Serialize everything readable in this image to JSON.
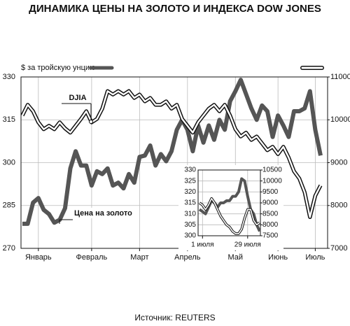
{
  "title": "ДИНАМИКА  ЦЕНЫ НА ЗОЛОТО И ИНДЕКСА DOW JONES",
  "source": "Источник: REUTERS",
  "chart_data": [
    {
      "type": "line",
      "y_label": "$ за тройскую унцию",
      "categories": [
        null,
        null,
        null,
        "Январь",
        null,
        null,
        null,
        null,
        null,
        null,
        null,
        null,
        null,
        "Февраль",
        null,
        null,
        null,
        null,
        null,
        null,
        null,
        null,
        "Март",
        null,
        null,
        null,
        null,
        null,
        null,
        null,
        null,
        "Апрель",
        null,
        null,
        null,
        null,
        null,
        null,
        null,
        null,
        "Май",
        null,
        null,
        null,
        null,
        null,
        null,
        null,
        "Июнь",
        null,
        null,
        null,
        null,
        null,
        null,
        "Июль",
        null
      ],
      "series": [
        {
          "name": "Цена на золото",
          "color": "#555555",
          "values": [
            278.6,
            278.6,
            286,
            287.6,
            283.5,
            282,
            279,
            280,
            284,
            298,
            304,
            299,
            299,
            292,
            297,
            296,
            298,
            292,
            293,
            291,
            296,
            293,
            302,
            302.5,
            306,
            299,
            303,
            300.5,
            304,
            311.5,
            315,
            311.5,
            304,
            313,
            307,
            313,
            308,
            315,
            311.5,
            321.5,
            325,
            329,
            324,
            319,
            315,
            320,
            318,
            309,
            316.5,
            313,
            309,
            318,
            318,
            319,
            325,
            311.5,
            302.5
          ]
        },
        {
          "name": "DJIA",
          "color": "#ffffff",
          "axis": "y2",
          "values": [
            10100,
            10350,
            10200,
            9940,
            9780,
            9860,
            9780,
            9940,
            9800,
            9700,
            9860,
            10020,
            10200,
            9940,
            10020,
            10260,
            10670,
            10590,
            10670,
            10590,
            10670,
            10510,
            10590,
            10430,
            10510,
            10350,
            10350,
            10430,
            10260,
            10350,
            10020,
            9860,
            9700,
            9940,
            10100,
            10260,
            10350,
            10200,
            10350,
            10100,
            9780,
            9610,
            9700,
            9530,
            9610,
            9450,
            9290,
            9370,
            9200,
            9370,
            9120,
            8800,
            8630,
            8310,
            7730,
            8230,
            8470
          ]
        }
      ],
      "ylim": [
        270,
        330
      ],
      "yticks": [
        270,
        285,
        300,
        315,
        330
      ],
      "y2lim": [
        7000,
        11000
      ],
      "y2ticks": [
        7000,
        8000,
        9000,
        10000,
        11000
      ],
      "grid": true
    },
    {
      "type": "line",
      "categories": [
        null,
        "1 июля",
        null,
        null,
        null,
        null,
        null,
        null,
        null,
        null,
        null,
        null,
        null,
        null,
        null,
        null,
        "29 июля",
        null,
        null,
        null,
        null
      ],
      "series": [
        {
          "name": "Цена на золото",
          "color": "#555555",
          "values": [
            312,
            311,
            310,
            313,
            316,
            315,
            313,
            315,
            315,
            316,
            316,
            318,
            318,
            320,
            326,
            325,
            318,
            312,
            310,
            305,
            302
          ]
        },
        {
          "name": "DJIA",
          "color": "#ffffff",
          "axis": "y2",
          "values": [
            9000,
            8900,
            8700,
            8900,
            9200,
            9000,
            8700,
            8400,
            8200,
            8000,
            7900,
            7700,
            7600,
            7600,
            7800,
            8300,
            8700,
            8700,
            8200,
            8000,
            8100
          ]
        }
      ],
      "ylim": [
        300,
        330
      ],
      "yticks": [
        300,
        305,
        310,
        315,
        320,
        325,
        330
      ],
      "y2lim": [
        7500,
        10500
      ],
      "y2ticks": [
        7500,
        8000,
        8500,
        9000,
        9500,
        10000,
        10500
      ],
      "grid": true
    }
  ]
}
